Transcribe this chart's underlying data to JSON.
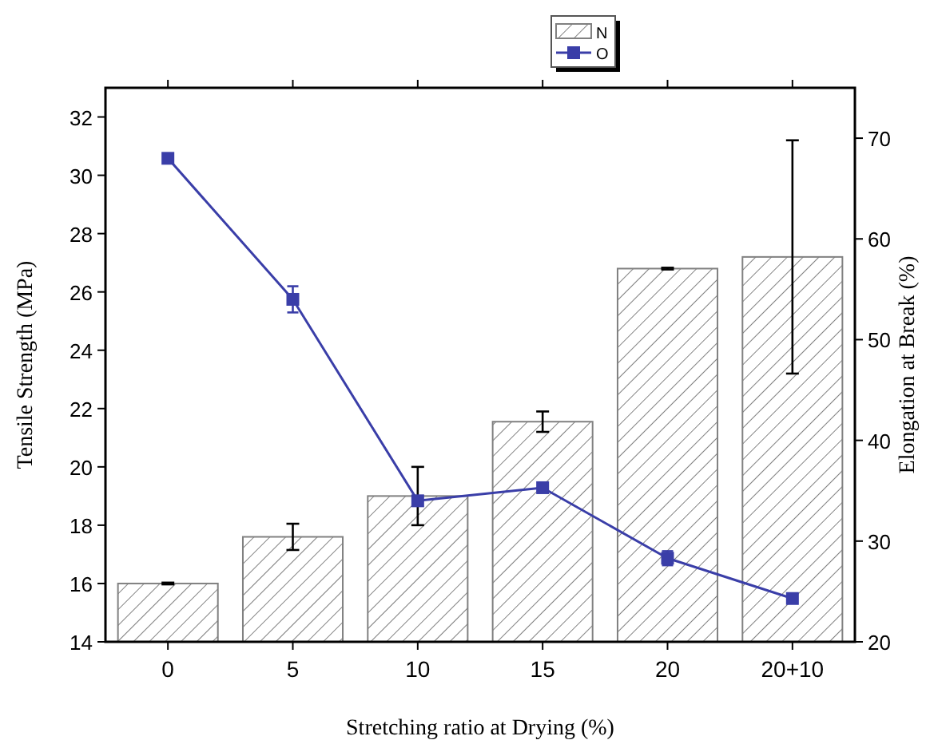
{
  "chart_data": {
    "type": "bar",
    "xlabel": "Stretching ratio at Drying (%)",
    "ylabel": "Tensile Strength (MPa)",
    "y2label": "Elongation at Break (%)",
    "categories": [
      "0",
      "5",
      "10",
      "15",
      "20",
      "20+10"
    ],
    "series": [
      {
        "name": "N",
        "color": "#808080",
        "values": [
          16.0,
          17.6,
          19.0,
          21.55,
          26.8,
          27.2
        ],
        "errors": [
          0.03,
          0.45,
          1.0,
          0.35,
          0.03,
          4.0
        ]
      },
      {
        "name": "O",
        "type": "line",
        "axis": "y2",
        "color": "#3a3ea8",
        "marker": "square",
        "values": [
          68,
          54,
          34,
          35.3,
          28.3,
          24.3
        ],
        "errors": [
          0.4,
          1.3,
          null,
          0.4,
          0.7,
          0.4
        ]
      }
    ],
    "ylim": [
      14,
      33
    ],
    "yticks": [
      14,
      16,
      18,
      20,
      22,
      24,
      26,
      28,
      30,
      32
    ],
    "y2lim": [
      20,
      75
    ],
    "y2ticks": [
      20,
      30,
      40,
      50,
      60,
      70
    ],
    "grid": false,
    "legend": "top"
  }
}
